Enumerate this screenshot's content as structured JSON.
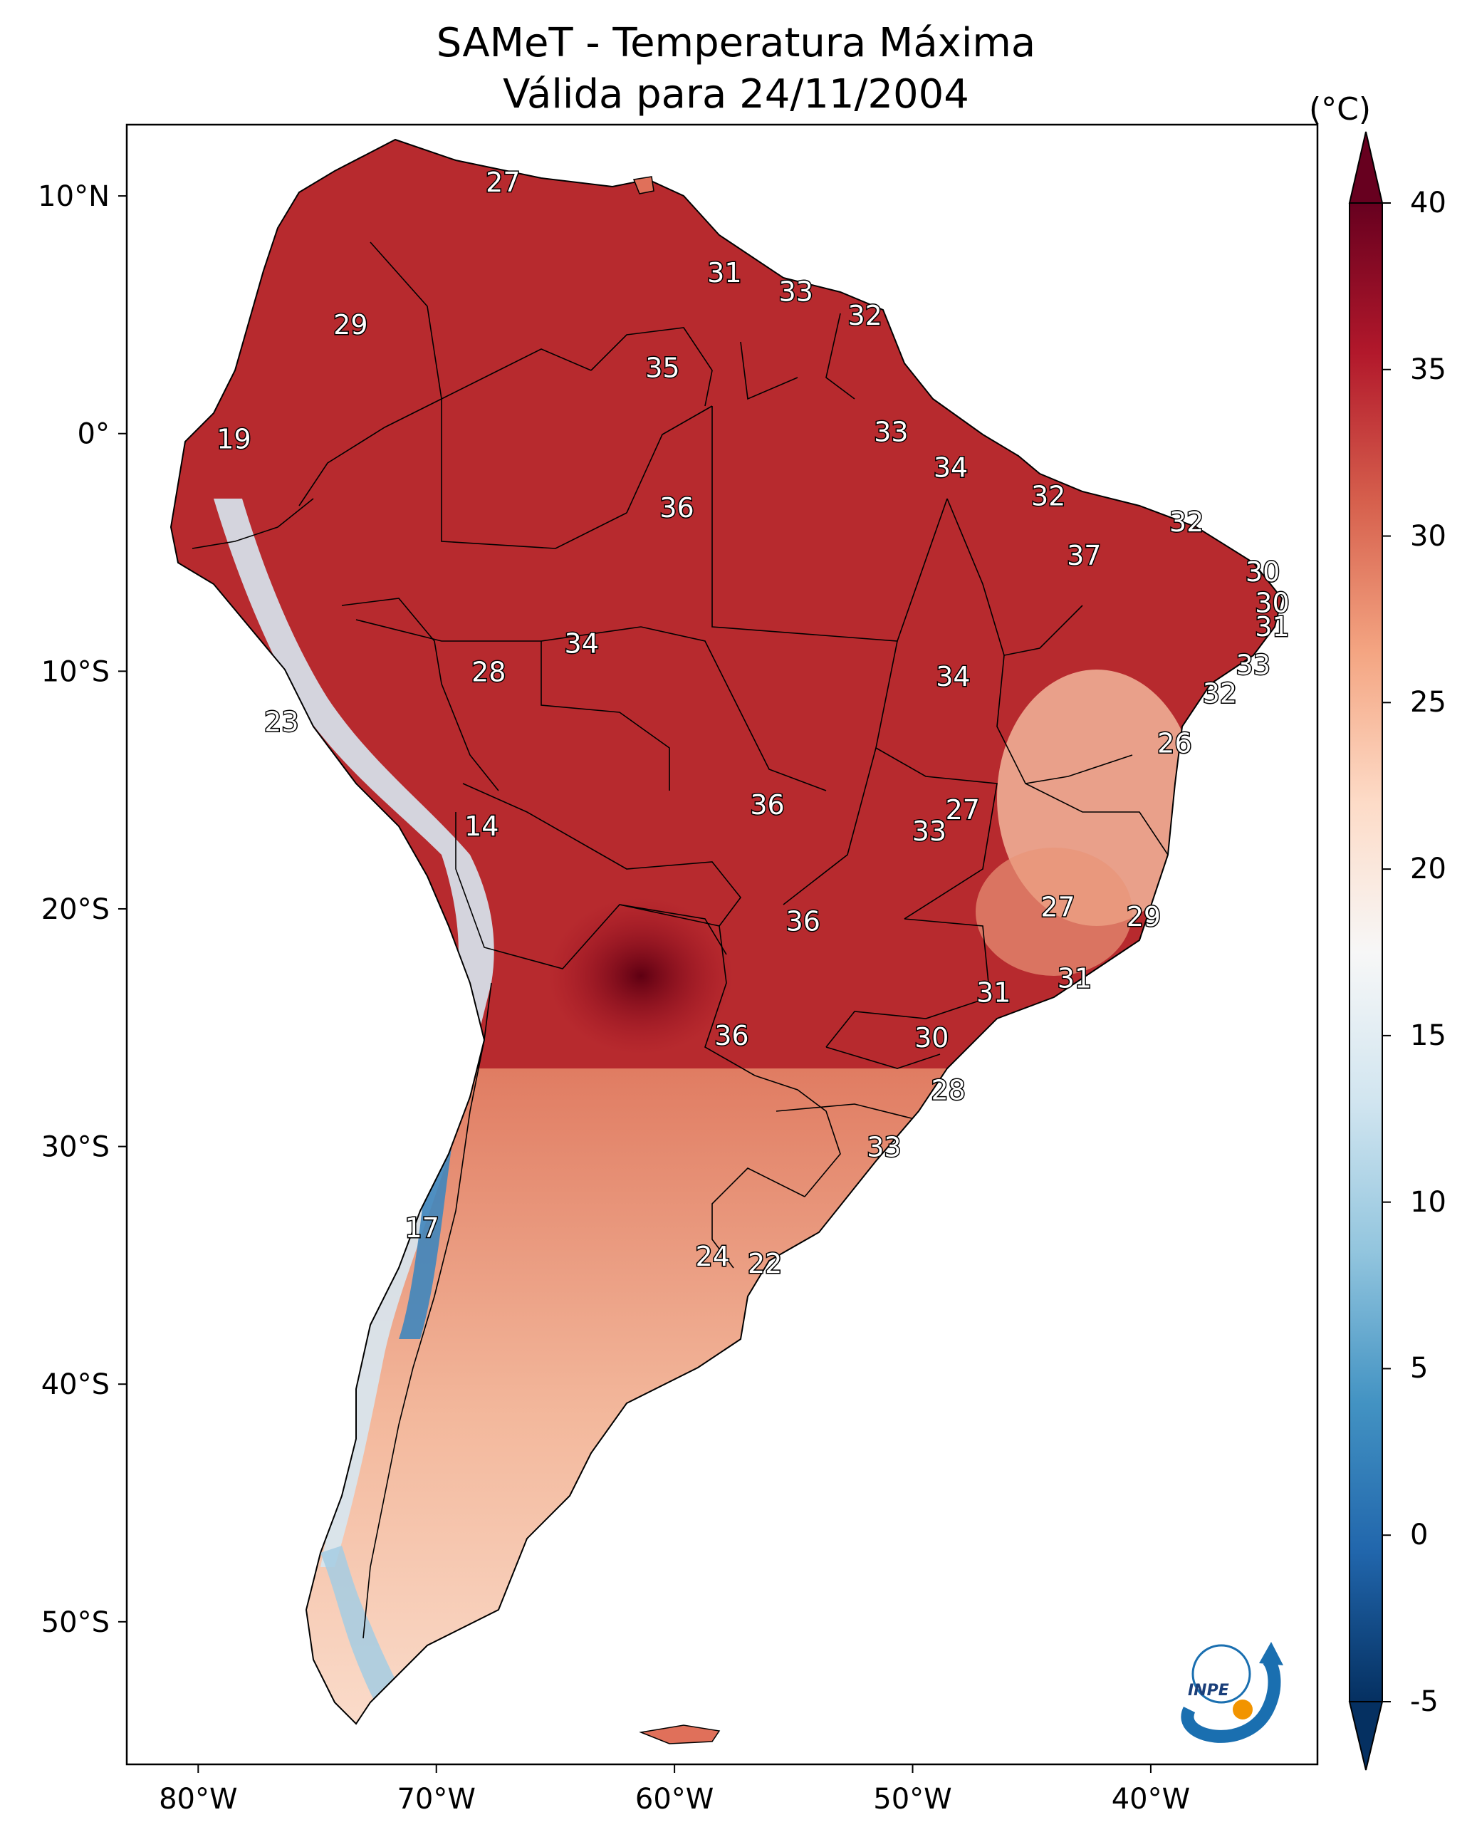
{
  "title": {
    "line1": "SAMeT - Temperatura Máxima",
    "line2": "Válida para 24/11/2004"
  },
  "axes": {
    "lat_ticks": [
      {
        "label": "10°N",
        "value": 10
      },
      {
        "label": "0°",
        "value": 0
      },
      {
        "label": "10°S",
        "value": -10
      },
      {
        "label": "20°S",
        "value": -20
      },
      {
        "label": "30°S",
        "value": -30
      },
      {
        "label": "40°S",
        "value": -40
      },
      {
        "label": "50°S",
        "value": -50
      }
    ],
    "lon_ticks": [
      {
        "label": "80°W",
        "value": -80
      },
      {
        "label": "70°W",
        "value": -70
      },
      {
        "label": "60°W",
        "value": -60
      },
      {
        "label": "50°W",
        "value": -50
      },
      {
        "label": "40°W",
        "value": -40
      }
    ],
    "lon_range": [
      -83,
      -33
    ],
    "lat_range": [
      -56,
      13
    ]
  },
  "colorbar": {
    "unit": "(°C)",
    "range": [
      -5,
      40
    ],
    "ticks": [
      "40",
      "35",
      "30",
      "25",
      "20",
      "15",
      "10",
      "5",
      "0",
      "-5"
    ],
    "colors": [
      "#053061",
      "#2166ac",
      "#4393c3",
      "#92c5de",
      "#d1e5f0",
      "#f7f7f7",
      "#fddbc7",
      "#f4a582",
      "#d6604d",
      "#b2182b",
      "#67001f"
    ]
  },
  "station_labels": [
    {
      "value": "27",
      "lon": -67.2,
      "lat": 10.6
    },
    {
      "value": "31",
      "lon": -57.9,
      "lat": 6.8
    },
    {
      "value": "33",
      "lon": -54.9,
      "lat": 6.0
    },
    {
      "value": "32",
      "lon": -52.0,
      "lat": 5.0
    },
    {
      "value": "29",
      "lon": -73.6,
      "lat": 4.6
    },
    {
      "value": "35",
      "lon": -60.5,
      "lat": 2.8
    },
    {
      "value": "19",
      "lon": -78.5,
      "lat": -0.2
    },
    {
      "value": "33",
      "lon": -50.9,
      "lat": 0.1
    },
    {
      "value": "34",
      "lon": -48.4,
      "lat": -1.4
    },
    {
      "value": "36",
      "lon": -59.9,
      "lat": -3.1
    },
    {
      "value": "32",
      "lon": -44.3,
      "lat": -2.6
    },
    {
      "value": "32",
      "lon": -38.5,
      "lat": -3.7
    },
    {
      "value": "37",
      "lon": -42.8,
      "lat": -5.1
    },
    {
      "value": "30",
      "lon": -35.3,
      "lat": -5.8
    },
    {
      "value": "30",
      "lon": -34.9,
      "lat": -7.1
    },
    {
      "value": "31",
      "lon": -34.9,
      "lat": -8.1
    },
    {
      "value": "34",
      "lon": -63.9,
      "lat": -8.8
    },
    {
      "value": "28",
      "lon": -67.8,
      "lat": -10.0
    },
    {
      "value": "34",
      "lon": -48.3,
      "lat": -10.2
    },
    {
      "value": "33",
      "lon": -35.7,
      "lat": -9.7
    },
    {
      "value": "32",
      "lon": -37.1,
      "lat": -10.9
    },
    {
      "value": "23",
      "lon": -76.5,
      "lat": -12.1
    },
    {
      "value": "26",
      "lon": -39.0,
      "lat": -13.0
    },
    {
      "value": "36",
      "lon": -56.1,
      "lat": -15.6
    },
    {
      "value": "27",
      "lon": -47.9,
      "lat": -15.8
    },
    {
      "value": "33",
      "lon": -49.3,
      "lat": -16.7
    },
    {
      "value": "14",
      "lon": -68.1,
      "lat": -16.5
    },
    {
      "value": "27",
      "lon": -43.9,
      "lat": -19.9
    },
    {
      "value": "29",
      "lon": -40.3,
      "lat": -20.3
    },
    {
      "value": "36",
      "lon": -54.6,
      "lat": -20.5
    },
    {
      "value": "31",
      "lon": -43.2,
      "lat": -22.9
    },
    {
      "value": "31",
      "lon": -46.6,
      "lat": -23.5
    },
    {
      "value": "36",
      "lon": -57.6,
      "lat": -25.3
    },
    {
      "value": "30",
      "lon": -49.2,
      "lat": -25.4
    },
    {
      "value": "28",
      "lon": -48.5,
      "lat": -27.6
    },
    {
      "value": "33",
      "lon": -51.2,
      "lat": -30.0
    },
    {
      "value": "17",
      "lon": -70.6,
      "lat": -33.4
    },
    {
      "value": "24",
      "lon": -58.4,
      "lat": -34.6
    },
    {
      "value": "22",
      "lon": -56.2,
      "lat": -34.9
    }
  ],
  "logo": {
    "text": "INPE"
  }
}
